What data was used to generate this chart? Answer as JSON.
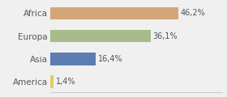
{
  "categories": [
    "America",
    "Asia",
    "Europa",
    "Africa"
  ],
  "values": [
    1.4,
    16.4,
    36.1,
    46.2
  ],
  "labels": [
    "1,4%",
    "16,4%",
    "36,1%",
    "46,2%"
  ],
  "bar_colors": [
    "#e8c96a",
    "#5b7db1",
    "#a8bb8a",
    "#d4a574"
  ],
  "background_color": "#f0f0f0",
  "xlim": [
    0,
    62
  ],
  "label_fontsize": 7,
  "tick_fontsize": 7.5,
  "bar_height": 0.55
}
